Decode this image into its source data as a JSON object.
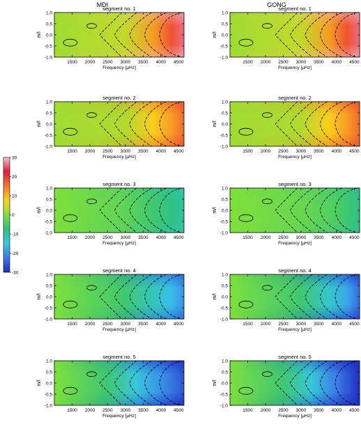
{
  "figure": {
    "column_titles": [
      "MDI",
      "GONG"
    ],
    "colorbar": {
      "tick_labels": [
        "30",
        "20",
        "10",
        "0",
        "-10",
        "-20",
        "-30"
      ],
      "ticks": [
        30,
        20,
        10,
        0,
        -10,
        -20,
        -30
      ],
      "range": [
        -30,
        30
      ],
      "colors": [
        "#f2c6cf",
        "#e8193a",
        "#f27a2a",
        "#ffd21a",
        "#7ee03c",
        "#2ec27e",
        "#38c8e8",
        "#3a78e8",
        "#1f2fc0"
      ]
    }
  },
  "chart_data": [
    {
      "type": "heatmap",
      "column": "MDI",
      "title": "segment no. 1",
      "xlabel": "Frequency [µHz]",
      "ylabel": "m/l",
      "xticks": [
        "1500",
        "2000",
        "2500",
        "3000",
        "3500",
        "4000",
        "4500"
      ],
      "yticks": [
        "1.0",
        "0.5",
        "0.0",
        "-0.5",
        "-1.0"
      ],
      "xlim": [
        1000,
        4650
      ],
      "ylim": [
        -1.0,
        1.0
      ],
      "field": [
        {
          "f": 1000,
          "v": 2
        },
        {
          "f": 3000,
          "v": 4
        },
        {
          "f": 3800,
          "v": 12
        },
        {
          "f": 4300,
          "v": 18
        },
        {
          "f": 4650,
          "v": 26
        }
      ],
      "edge": 1
    },
    {
      "type": "heatmap",
      "column": "GONG",
      "title": "segment no. 1",
      "xlabel": "Frequency [µHz]",
      "ylabel": "m/l",
      "xticks": [
        "1500",
        "2000",
        "2500",
        "3000",
        "3500",
        "4000",
        "4500"
      ],
      "yticks": [
        "1.0",
        "0.5",
        "0.0",
        "-0.5",
        "-1.0"
      ],
      "xlim": [
        1000,
        4650
      ],
      "ylim": [
        -1.0,
        1.0
      ],
      "field": [
        {
          "f": 1000,
          "v": 2
        },
        {
          "f": 3000,
          "v": 4
        },
        {
          "f": 3800,
          "v": 12
        },
        {
          "f": 4300,
          "v": 18
        },
        {
          "f": 4650,
          "v": 26
        }
      ],
      "edge": 1
    },
    {
      "type": "heatmap",
      "column": "MDI",
      "title": "segment no. 2",
      "xlabel": "Frequency [µHz]",
      "ylabel": "m/l",
      "xticks": [
        "1500",
        "2000",
        "2500",
        "3000",
        "3500",
        "4000",
        "4500"
      ],
      "yticks": [
        "1.0",
        "0.5",
        "0.0",
        "-0.5",
        "-1.0"
      ],
      "xlim": [
        1000,
        4650
      ],
      "ylim": [
        -1.0,
        1.0
      ],
      "field": [
        {
          "f": 1000,
          "v": 2
        },
        {
          "f": 3000,
          "v": 3
        },
        {
          "f": 3800,
          "v": 8
        },
        {
          "f": 4300,
          "v": 12
        },
        {
          "f": 4650,
          "v": 16
        }
      ],
      "edge": 0.8
    },
    {
      "type": "heatmap",
      "column": "GONG",
      "title": "segment no. 2",
      "xlabel": "Frequency [µHz]",
      "ylabel": "m/l",
      "xticks": [
        "1500",
        "2000",
        "2500",
        "3000",
        "3500",
        "4000",
        "4500"
      ],
      "yticks": [
        "1.0",
        "0.5",
        "0.0",
        "-0.5",
        "-1.0"
      ],
      "xlim": [
        1000,
        4650
      ],
      "ylim": [
        -1.0,
        1.0
      ],
      "field": [
        {
          "f": 1000,
          "v": 2
        },
        {
          "f": 3000,
          "v": 3
        },
        {
          "f": 3800,
          "v": 8
        },
        {
          "f": 4300,
          "v": 12
        },
        {
          "f": 4650,
          "v": 16
        }
      ],
      "edge": 0.8
    },
    {
      "type": "heatmap",
      "column": "MDI",
      "title": "segment no. 3",
      "xlabel": "Frequency [µHz]",
      "ylabel": "m/l",
      "xticks": [
        "1500",
        "2000",
        "2500",
        "3000",
        "3500",
        "4000",
        "4500"
      ],
      "yticks": [
        "1.0",
        "0.5",
        "0.0",
        "-0.5",
        "-1.0"
      ],
      "xlim": [
        1000,
        4650
      ],
      "ylim": [
        -1.0,
        1.0
      ],
      "field": [
        {
          "f": 1000,
          "v": 0
        },
        {
          "f": 3000,
          "v": -3
        },
        {
          "f": 3800,
          "v": -6
        },
        {
          "f": 4300,
          "v": -8
        },
        {
          "f": 4650,
          "v": -10
        }
      ],
      "edge": 0.5
    },
    {
      "type": "heatmap",
      "column": "GONG",
      "title": "segment no. 3",
      "xlabel": "Frequency [µHz]",
      "ylabel": "m/l",
      "xticks": [
        "1500",
        "2000",
        "2500",
        "3000",
        "3500",
        "4000",
        "4500"
      ],
      "yticks": [
        "1.0",
        "0.5",
        "0.0",
        "-0.5",
        "-1.0"
      ],
      "xlim": [
        1000,
        4650
      ],
      "ylim": [
        -1.0,
        1.0
      ],
      "field": [
        {
          "f": 1000,
          "v": 0
        },
        {
          "f": 3000,
          "v": -2
        },
        {
          "f": 3800,
          "v": -4
        },
        {
          "f": 4300,
          "v": -6
        },
        {
          "f": 4650,
          "v": -8
        }
      ],
      "edge": 0.5
    },
    {
      "type": "heatmap",
      "column": "MDI",
      "title": "segment no. 4",
      "xlabel": "Frequency [µHz]",
      "ylabel": "m/l",
      "xticks": [
        "1500",
        "2000",
        "2500",
        "3000",
        "3500",
        "4000",
        "4500"
      ],
      "yticks": [
        "1.0",
        "0.5",
        "0.0",
        "-0.5",
        "-1.0"
      ],
      "xlim": [
        1000,
        4650
      ],
      "ylim": [
        -1.0,
        1.0
      ],
      "field": [
        {
          "f": 1000,
          "v": 0
        },
        {
          "f": 3000,
          "v": -6
        },
        {
          "f": 3800,
          "v": -12
        },
        {
          "f": 4300,
          "v": -16
        },
        {
          "f": 4650,
          "v": -20
        }
      ],
      "edge": 1
    },
    {
      "type": "heatmap",
      "column": "GONG",
      "title": "segment no. 4",
      "xlabel": "Frequency [µHz]",
      "ylabel": "m/l",
      "xticks": [
        "1500",
        "2000",
        "2500",
        "3000",
        "3500",
        "4000",
        "4500"
      ],
      "yticks": [
        "1.0",
        "0.5",
        "0.0",
        "-0.5",
        "-1.0"
      ],
      "xlim": [
        1000,
        4650
      ],
      "ylim": [
        -1.0,
        1.0
      ],
      "field": [
        {
          "f": 1000,
          "v": 0
        },
        {
          "f": 3000,
          "v": -6
        },
        {
          "f": 3800,
          "v": -13
        },
        {
          "f": 4300,
          "v": -18
        },
        {
          "f": 4650,
          "v": -24
        }
      ],
      "edge": 1.1
    },
    {
      "type": "heatmap",
      "column": "MDI",
      "title": "segment no. 5",
      "xlabel": "Frequency [µHz]",
      "ylabel": "m/l",
      "xticks": [
        "1500",
        "2000",
        "2500",
        "3000",
        "3500",
        "4000",
        "4500"
      ],
      "yticks": [
        "1.0",
        "0.5",
        "0.0",
        "-0.5",
        "-1.0"
      ],
      "xlim": [
        1000,
        4650
      ],
      "ylim": [
        -1.0,
        1.0
      ],
      "field": [
        {
          "f": 1000,
          "v": 0
        },
        {
          "f": 2500,
          "v": -6
        },
        {
          "f": 3300,
          "v": -14
        },
        {
          "f": 4000,
          "v": -20
        },
        {
          "f": 4650,
          "v": -26
        }
      ],
      "edge": 1.4
    },
    {
      "type": "heatmap",
      "column": "GONG",
      "title": "segment no. 5",
      "xlabel": "Frequency [µHz]",
      "ylabel": "m/l",
      "xticks": [
        "1500",
        "2000",
        "2500",
        "3000",
        "3500",
        "4000",
        "4500"
      ],
      "yticks": [
        "1.0",
        "0.5",
        "0.0",
        "-0.5",
        "-1.0"
      ],
      "xlim": [
        1000,
        4650
      ],
      "ylim": [
        -1.0,
        1.0
      ],
      "field": [
        {
          "f": 1000,
          "v": 0
        },
        {
          "f": 2500,
          "v": -6
        },
        {
          "f": 3300,
          "v": -14
        },
        {
          "f": 4000,
          "v": -22
        },
        {
          "f": 4650,
          "v": -30
        }
      ],
      "edge": 1.5
    }
  ]
}
